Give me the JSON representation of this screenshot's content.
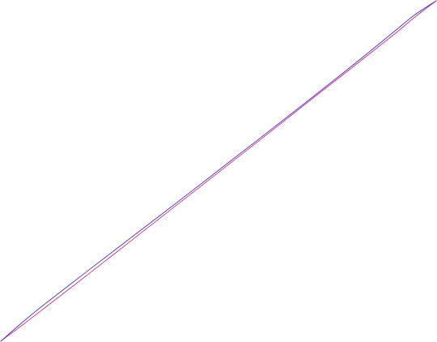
{
  "chart_data": {
    "type": "line",
    "title": "",
    "xlabel": "",
    "ylabel": "",
    "xlim": [
      0,
      1
    ],
    "ylim": [
      0,
      1
    ],
    "grid": false,
    "legend": "none",
    "series": [
      {
        "color": "#e0287f",
        "x": [
          0,
          0.05,
          0.1,
          0.2,
          0.3,
          0.4,
          0.5,
          0.6,
          0.7,
          0.8,
          0.9,
          0.95,
          1
        ],
        "y": [
          0,
          0.048,
          0.097,
          0.196,
          0.296,
          0.396,
          0.496,
          0.596,
          0.697,
          0.797,
          0.898,
          0.951,
          1
        ]
      },
      {
        "color": "#3a3ae0",
        "x": [
          0,
          0.05,
          0.1,
          0.2,
          0.3,
          0.4,
          0.5,
          0.6,
          0.7,
          0.8,
          0.9,
          0.95,
          1
        ],
        "y": [
          0,
          0.056,
          0.108,
          0.207,
          0.305,
          0.403,
          0.502,
          0.601,
          0.701,
          0.802,
          0.906,
          0.958,
          1
        ]
      }
    ]
  }
}
